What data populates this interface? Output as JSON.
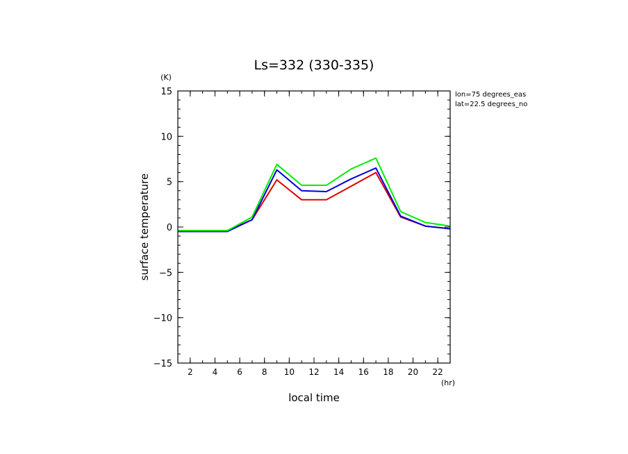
{
  "chart_data": {
    "type": "line",
    "title": "Ls=332 (330-335)",
    "xlabel": "local time",
    "ylabel": "surface temperature",
    "x_unit": "(hr)",
    "y_unit": "(K)",
    "xlim": [
      1,
      23
    ],
    "ylim": [
      -15,
      15
    ],
    "x_ticks": [
      2,
      4,
      6,
      8,
      10,
      12,
      14,
      16,
      18,
      20,
      22
    ],
    "y_ticks": [
      -15,
      -10,
      -5,
      0,
      5,
      10,
      15
    ],
    "annotations": [
      "lon=75 degrees_eas",
      "lat=22.5 degrees_no"
    ],
    "x": [
      1,
      3,
      5,
      7,
      9,
      11,
      13,
      15,
      17,
      19,
      21,
      23
    ],
    "series": [
      {
        "name": "red",
        "color": "#dd0000",
        "values": [
          -0.4,
          -0.4,
          -0.4,
          0.8,
          5.2,
          3.0,
          3.0,
          4.5,
          6.0,
          1.1,
          0.1,
          -0.2
        ]
      },
      {
        "name": "blue",
        "color": "#0000dd",
        "values": [
          -0.5,
          -0.5,
          -0.5,
          0.8,
          6.3,
          4.0,
          3.9,
          5.3,
          6.5,
          1.2,
          0.1,
          -0.2
        ]
      },
      {
        "name": "green",
        "color": "#00ee00",
        "values": [
          -0.4,
          -0.4,
          -0.4,
          1.1,
          6.9,
          4.6,
          4.6,
          6.4,
          7.6,
          1.7,
          0.5,
          0.1
        ]
      }
    ]
  }
}
